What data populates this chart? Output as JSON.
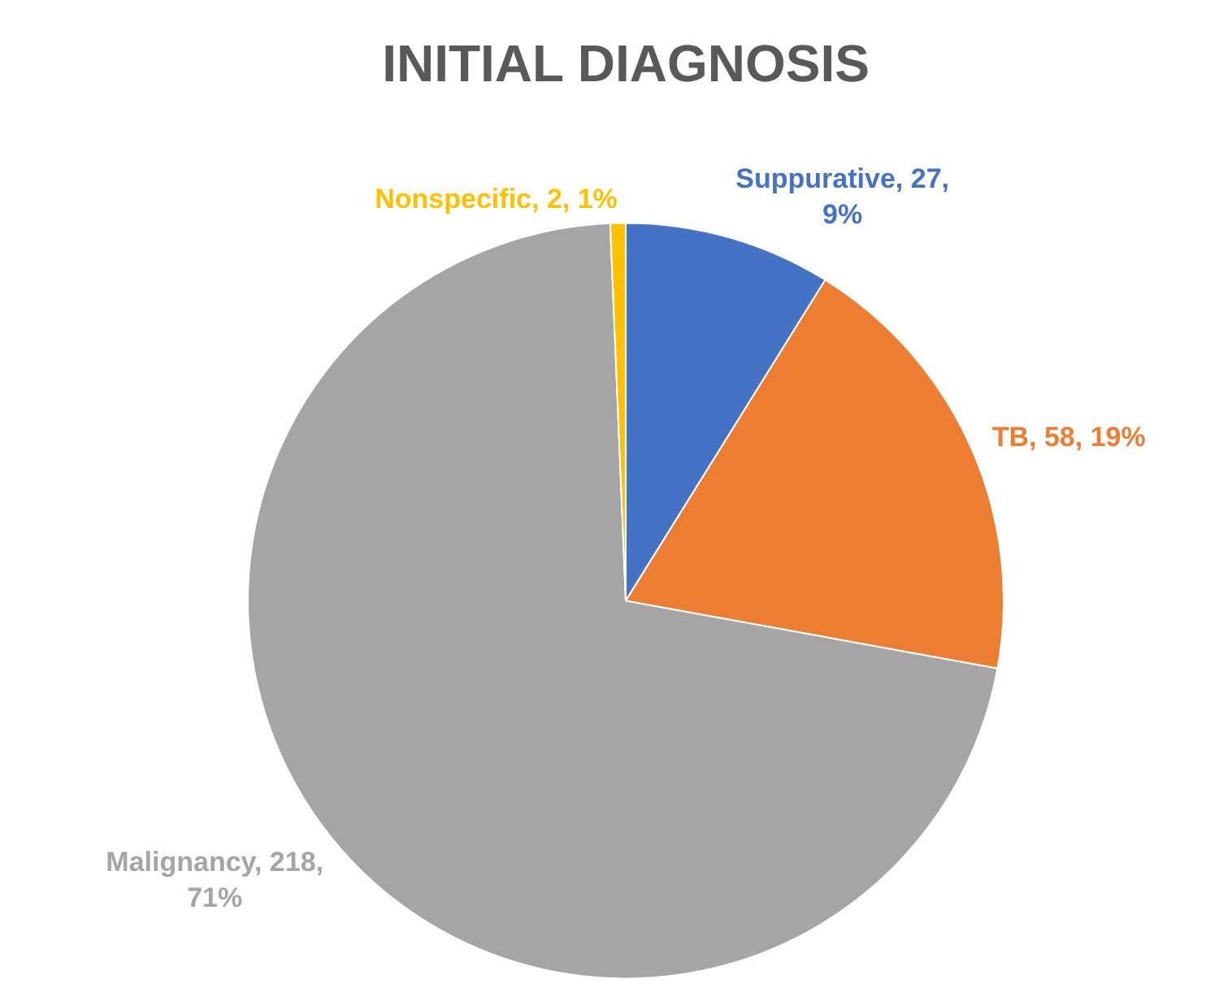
{
  "chart_data": {
    "type": "pie",
    "title": "INITIAL DIAGNOSIS",
    "categories": [
      "Suppurative",
      "TB",
      "Malignancy",
      "Nonspecific"
    ],
    "values": [
      27,
      58,
      218,
      2
    ],
    "colors": [
      "#4472c4",
      "#ed7d31",
      "#a5a5a5",
      "#ffc000"
    ],
    "value_labels": [
      "27, 9%",
      "58, 19%",
      "218, 71%",
      "2, 1%"
    ],
    "legend": false
  }
}
